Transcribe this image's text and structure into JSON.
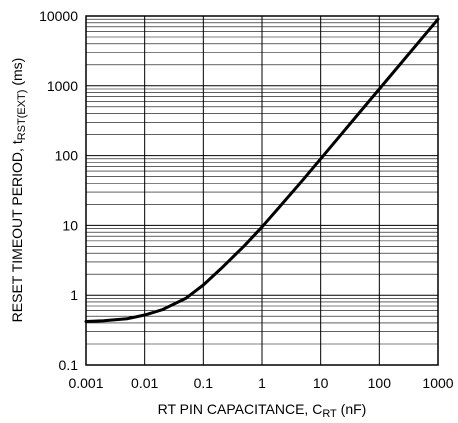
{
  "chart_data": {
    "type": "line",
    "title": "",
    "xlabel": {
      "main": "RT PIN CAPACITANCE, C",
      "sub": "RT",
      "unit": " (nF)"
    },
    "ylabel": {
      "main": "RESET TIMEOUT PERIOD, t",
      "sub": "RST(EXT)",
      "unit": " (ms)"
    },
    "x_scale": "log",
    "y_scale": "log",
    "xlim": [
      0.001,
      1000
    ],
    "ylim": [
      0.1,
      10000
    ],
    "x_ticks": [
      0.001,
      0.01,
      0.1,
      1,
      10,
      100,
      1000
    ],
    "x_tick_labels": [
      "0.001",
      "0.01",
      "0.1",
      "1",
      "10",
      "100",
      "1000"
    ],
    "y_ticks": [
      0.1,
      1,
      10,
      100,
      1000,
      10000
    ],
    "y_tick_labels": [
      "0.1",
      "1",
      "10",
      "100",
      "1000",
      "10000"
    ],
    "grid": "major vertical, major and minor horizontal",
    "series": [
      {
        "color": "#000000",
        "points": [
          [
            0.001,
            0.42
          ],
          [
            0.002,
            0.43
          ],
          [
            0.005,
            0.46
          ],
          [
            0.01,
            0.52
          ],
          [
            0.02,
            0.62
          ],
          [
            0.05,
            0.9
          ],
          [
            0.1,
            1.4
          ],
          [
            0.2,
            2.4
          ],
          [
            0.5,
            5.1
          ],
          [
            1,
            9.5
          ],
          [
            2,
            18.5
          ],
          [
            5,
            45
          ],
          [
            10,
            90
          ],
          [
            20,
            180
          ],
          [
            50,
            450
          ],
          [
            100,
            900
          ],
          [
            200,
            1800
          ],
          [
            500,
            4500
          ],
          [
            1000,
            9000
          ]
        ]
      }
    ]
  }
}
